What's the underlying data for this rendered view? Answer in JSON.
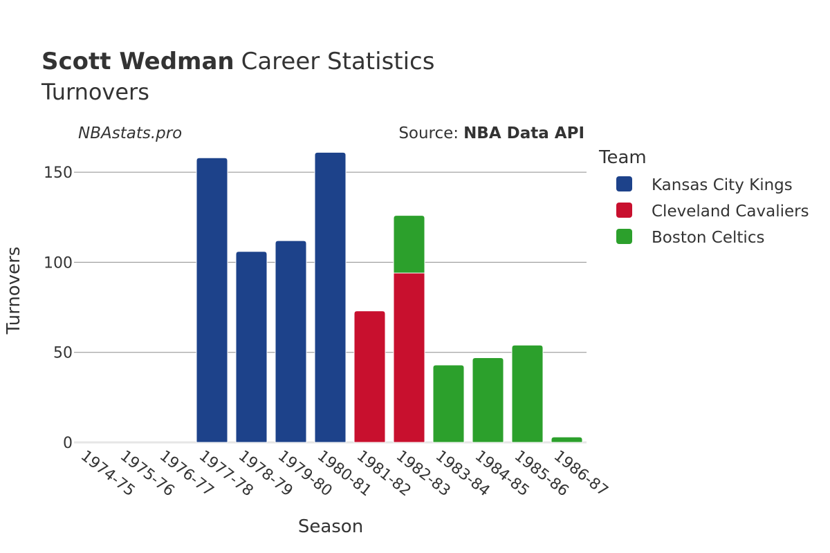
{
  "header": {
    "title_bold": "Scott Wedman",
    "title_rest": "Career Statistics",
    "subtitle": "Turnovers"
  },
  "watermark": "NBAstats.pro",
  "source": {
    "label": "Source:",
    "value": "NBA Data API"
  },
  "legend": {
    "title": "Team",
    "items": [
      {
        "label": "Kansas City Kings",
        "color": "#1d428a"
      },
      {
        "label": "Cleveland Cavaliers",
        "color": "#c8102e"
      },
      {
        "label": "Boston Celtics",
        "color": "#2ca02c"
      }
    ]
  },
  "chart_data": {
    "type": "bar",
    "stacked": true,
    "xlabel": "Season",
    "ylabel": "Turnovers",
    "ylim": [
      0,
      165
    ],
    "yticks": [
      0,
      50,
      100,
      150
    ],
    "grid": true,
    "legend_position": "right",
    "categories": [
      "1974-75",
      "1975-76",
      "1976-77",
      "1977-78",
      "1978-79",
      "1979-80",
      "1980-81",
      "1981-82",
      "1982-83",
      "1983-84",
      "1984-85",
      "1985-86",
      "1986-87"
    ],
    "series": [
      {
        "name": "Kansas City Kings",
        "color": "#1d428a",
        "values": [
          0,
          0,
          0,
          158,
          106,
          112,
          161,
          0,
          0,
          0,
          0,
          0,
          0
        ]
      },
      {
        "name": "Cleveland Cavaliers",
        "color": "#c8102e",
        "values": [
          0,
          0,
          0,
          0,
          0,
          0,
          0,
          73,
          94,
          0,
          0,
          0,
          0
        ]
      },
      {
        "name": "Boston Celtics",
        "color": "#2ca02c",
        "values": [
          0,
          0,
          0,
          0,
          0,
          0,
          0,
          0,
          32,
          43,
          47,
          54,
          3
        ]
      }
    ]
  }
}
